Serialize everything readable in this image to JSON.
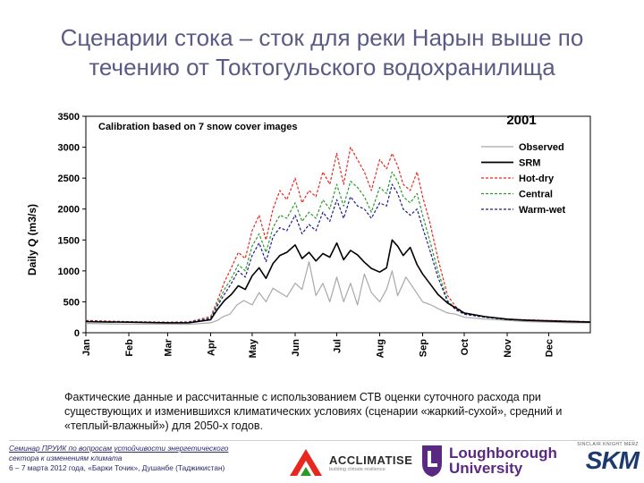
{
  "slide": {
    "title": "Сценарии стока – сток для реки Нарын выше по течению от Токтогульского водохранилища",
    "caption": "Фактические данные и рассчитанные с использованием СТВ оценки суточного расхода при существующих и изменившихся климатических условиях (сценарии «жаркий-сухой», средний и «теплый-влажный») для 2050-х годов."
  },
  "footer": {
    "seminar_line1": "Семинар ПРУИК по вопросам устойчивости энергетического",
    "seminar_line2": "сектора к изменениям климата",
    "seminar_line3": "6 – 7 марта 2012 года, «Барки Точик», Душанбе (Таджикистан)",
    "acclimatise_name": "ACCLIMATISE",
    "acclimatise_sub": "building climate resilience",
    "lboro_line1": "Loughborough",
    "lboro_line2": "University",
    "skm_tag": "SINCLAIR KNIGHT MERZ",
    "skm_name": "SKM"
  },
  "colors": {
    "observed": "#a8a8a8",
    "srm": "#000000",
    "hot_dry": "#e8281e",
    "central": "#2a9a2a",
    "warm_wet": "#1a1a8c"
  },
  "chart_data": {
    "type": "line",
    "title": "2001",
    "annotation": "Calibration based on 7 snow cover images",
    "xlabel": "",
    "ylabel": "Daily Q (m3/s)",
    "ylim": [
      0,
      3500
    ],
    "yticks": [
      0,
      500,
      1000,
      1500,
      2000,
      2500,
      3000,
      3500
    ],
    "xlim": [
      1,
      365
    ],
    "month_labels": [
      "Jan",
      "Feb",
      "Mar",
      "Apr",
      "May",
      "Jun",
      "Jul",
      "Aug",
      "Sep",
      "Oct",
      "Nov",
      "Dec"
    ],
    "month_days": [
      1,
      32,
      60,
      91,
      121,
      152,
      182,
      213,
      244,
      274,
      305,
      335
    ],
    "legend_position": "right",
    "series": [
      {
        "name": "Observed",
        "key": "observed",
        "style": "solid",
        "x": [
          1,
          15,
          32,
          46,
          60,
          75,
          91,
          96,
          100,
          105,
          110,
          115,
          121,
          126,
          131,
          136,
          141,
          146,
          152,
          157,
          162,
          167,
          172,
          177,
          182,
          187,
          192,
          197,
          202,
          207,
          213,
          218,
          222,
          226,
          232,
          238,
          244,
          250,
          256,
          262,
          268,
          274,
          289,
          305,
          320,
          335,
          350,
          365
        ],
        "y": [
          150,
          145,
          140,
          140,
          140,
          135,
          160,
          200,
          260,
          300,
          450,
          520,
          450,
          650,
          500,
          720,
          650,
          580,
          800,
          700,
          1150,
          600,
          800,
          500,
          900,
          500,
          800,
          450,
          950,
          650,
          500,
          700,
          1000,
          600,
          900,
          700,
          500,
          450,
          380,
          320,
          300,
          250,
          220,
          200,
          180,
          170,
          160,
          160
        ]
      },
      {
        "name": "SRM",
        "key": "srm",
        "style": "solid",
        "x": [
          1,
          15,
          32,
          46,
          60,
          75,
          91,
          96,
          101,
          106,
          111,
          116,
          121,
          126,
          131,
          136,
          141,
          146,
          152,
          157,
          162,
          167,
          172,
          177,
          182,
          187,
          192,
          197,
          202,
          207,
          213,
          218,
          222,
          226,
          230,
          235,
          240,
          244,
          249,
          255,
          262,
          268,
          274,
          289,
          305,
          320,
          335,
          350,
          365
        ],
        "y": [
          180,
          175,
          170,
          165,
          160,
          160,
          210,
          380,
          520,
          620,
          760,
          700,
          920,
          1050,
          880,
          1120,
          1250,
          1300,
          1420,
          1200,
          1300,
          1160,
          1280,
          1220,
          1450,
          1180,
          1330,
          1260,
          1140,
          1040,
          980,
          1050,
          1500,
          1400,
          1250,
          1380,
          1100,
          950,
          800,
          620,
          480,
          400,
          320,
          260,
          220,
          200,
          190,
          180,
          170
        ]
      },
      {
        "name": "Hot-dry",
        "key": "hot_dry",
        "style": "dashed",
        "x": [
          1,
          15,
          32,
          46,
          60,
          75,
          91,
          96,
          101,
          106,
          111,
          116,
          121,
          126,
          131,
          136,
          141,
          146,
          152,
          157,
          162,
          167,
          172,
          177,
          182,
          187,
          192,
          197,
          202,
          207,
          213,
          218,
          222,
          226,
          230,
          235,
          240,
          244,
          249,
          255,
          262,
          268,
          274,
          289,
          305,
          320,
          335,
          350,
          365
        ],
        "y": [
          200,
          190,
          180,
          175,
          170,
          175,
          260,
          520,
          820,
          1050,
          1300,
          1200,
          1650,
          1900,
          1500,
          2000,
          2300,
          2150,
          2500,
          2100,
          2300,
          2200,
          2600,
          2400,
          2900,
          2400,
          3000,
          2800,
          2600,
          2300,
          2800,
          2650,
          2900,
          2700,
          2400,
          2300,
          2600,
          2200,
          1800,
          1200,
          600,
          420,
          320,
          260,
          220,
          210,
          200,
          190,
          180
        ]
      },
      {
        "name": "Central",
        "key": "central",
        "style": "dashed",
        "x": [
          1,
          15,
          32,
          46,
          60,
          75,
          91,
          96,
          101,
          106,
          111,
          116,
          121,
          126,
          131,
          136,
          141,
          146,
          152,
          157,
          162,
          167,
          172,
          177,
          182,
          187,
          192,
          197,
          202,
          207,
          213,
          218,
          222,
          226,
          230,
          235,
          240,
          244,
          249,
          255,
          262,
          268,
          274,
          289,
          305,
          320,
          335,
          350,
          365
        ],
        "y": [
          190,
          180,
          175,
          170,
          165,
          170,
          240,
          470,
          700,
          880,
          1100,
          1000,
          1400,
          1600,
          1300,
          1700,
          1900,
          1850,
          2100,
          1800,
          1950,
          1850,
          2150,
          2000,
          2400,
          2050,
          2450,
          2350,
          2200,
          1950,
          2350,
          2250,
          2600,
          2450,
          2200,
          2100,
          2250,
          1900,
          1500,
          1000,
          520,
          380,
          300,
          250,
          210,
          200,
          195,
          185,
          175
        ]
      },
      {
        "name": "Warm-wet",
        "key": "warm_wet",
        "style": "dashed",
        "x": [
          1,
          15,
          32,
          46,
          60,
          75,
          91,
          96,
          101,
          106,
          111,
          116,
          121,
          126,
          131,
          136,
          141,
          146,
          152,
          157,
          162,
          167,
          172,
          177,
          182,
          187,
          192,
          197,
          202,
          207,
          213,
          218,
          222,
          226,
          230,
          235,
          240,
          244,
          249,
          255,
          262,
          268,
          274,
          289,
          305,
          320,
          335,
          350,
          365
        ],
        "y": [
          190,
          180,
          175,
          170,
          165,
          170,
          230,
          440,
          620,
          800,
          1000,
          900,
          1250,
          1450,
          1150,
          1550,
          1700,
          1650,
          1900,
          1600,
          1750,
          1650,
          1950,
          1800,
          2150,
          1850,
          2200,
          2050,
          2000,
          1850,
          2100,
          2050,
          2400,
          2250,
          2000,
          1900,
          2000,
          1700,
          1350,
          900,
          500,
          370,
          300,
          250,
          215,
          205,
          195,
          185,
          175
        ]
      }
    ]
  }
}
